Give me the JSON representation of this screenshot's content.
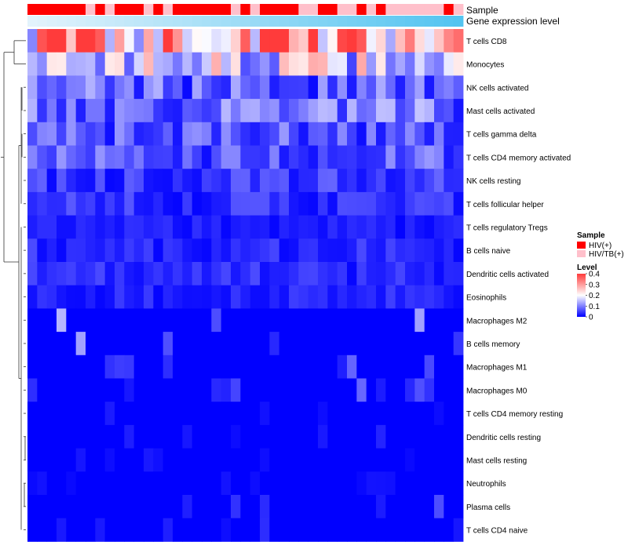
{
  "chart_data": {
    "type": "heatmap",
    "title": "",
    "annotations": [
      {
        "name": "Sample",
        "label": "Sample"
      },
      {
        "name": "Gene expression level",
        "label": "Gene expression level"
      }
    ],
    "columns": 45,
    "sample_groups": [
      "HIV(+)",
      "HIV(+)",
      "HIV(+)",
      "HIV(+)",
      "HIV(+)",
      "HIV(+)",
      "HIV/TB(+)",
      "HIV(+)",
      "HIV/TB(+)",
      "HIV(+)",
      "HIV(+)",
      "HIV(+)",
      "HIV/TB(+)",
      "HIV(+)",
      "HIV/TB(+)",
      "HIV(+)",
      "HIV(+)",
      "HIV(+)",
      "HIV(+)",
      "HIV(+)",
      "HIV(+)",
      "HIV/TB(+)",
      "HIV(+)",
      "HIV/TB(+)",
      "HIV(+)",
      "HIV(+)",
      "HIV(+)",
      "HIV(+)",
      "HIV/TB(+)",
      "HIV/TB(+)",
      "HIV(+)",
      "HIV(+)",
      "HIV/TB(+)",
      "HIV/TB(+)",
      "HIV(+)",
      "HIV/TB(+)",
      "HIV(+)",
      "HIV/TB(+)",
      "HIV/TB(+)",
      "HIV/TB(+)",
      "HIV/TB(+)",
      "HIV/TB(+)",
      "HIV/TB(+)",
      "HIV(+)",
      "HIV/TB(+)"
    ],
    "expression_level_range": [
      0.02,
      0.98
    ],
    "rows": [
      "T cells CD8",
      "Monocytes",
      "NK cells activated",
      "Mast cells activated",
      "T cells gamma delta",
      "T cells CD4 memory activated",
      "NK cells resting",
      "T cells follicular helper",
      "T cells regulatory  Tregs",
      "B cells naive",
      "Dendritic cells activated",
      "Eosinophils",
      "Macrophages M2",
      "B cells memory",
      "Macrophages M1",
      "Macrophages M0",
      "T cells CD4 memory resting",
      "Dendritic cells resting",
      "Mast cells resting",
      "Neutrophils",
      "Plasma cells",
      "T cells CD4 naive"
    ],
    "row_mean_levels": [
      0.3,
      0.17,
      0.07,
      0.08,
      0.06,
      0.06,
      0.04,
      0.035,
      0.02,
      0.03,
      0.03,
      0.025,
      0.015,
      0.015,
      0.008,
      0.008,
      0.004,
      0.004,
      0.002,
      0.002,
      0.008,
      0.004
    ],
    "legend_sample": {
      "title": "Sample",
      "entries": [
        {
          "label": "HIV(+)",
          "color": "#ff0000"
        },
        {
          "label": "HIV/TB(+)",
          "color": "#ffc0cb"
        }
      ]
    },
    "legend_level": {
      "title": "Level",
      "ticks": [
        "0.4",
        "0.3",
        "0.2",
        "0.1",
        "0"
      ],
      "tick_values": [
        0.4,
        0.3,
        0.2,
        0.1,
        0
      ],
      "colors": {
        "low": "#0000ff",
        "mid": "#ffffff",
        "high": "#ff3b3b"
      },
      "max": 0.4
    }
  }
}
